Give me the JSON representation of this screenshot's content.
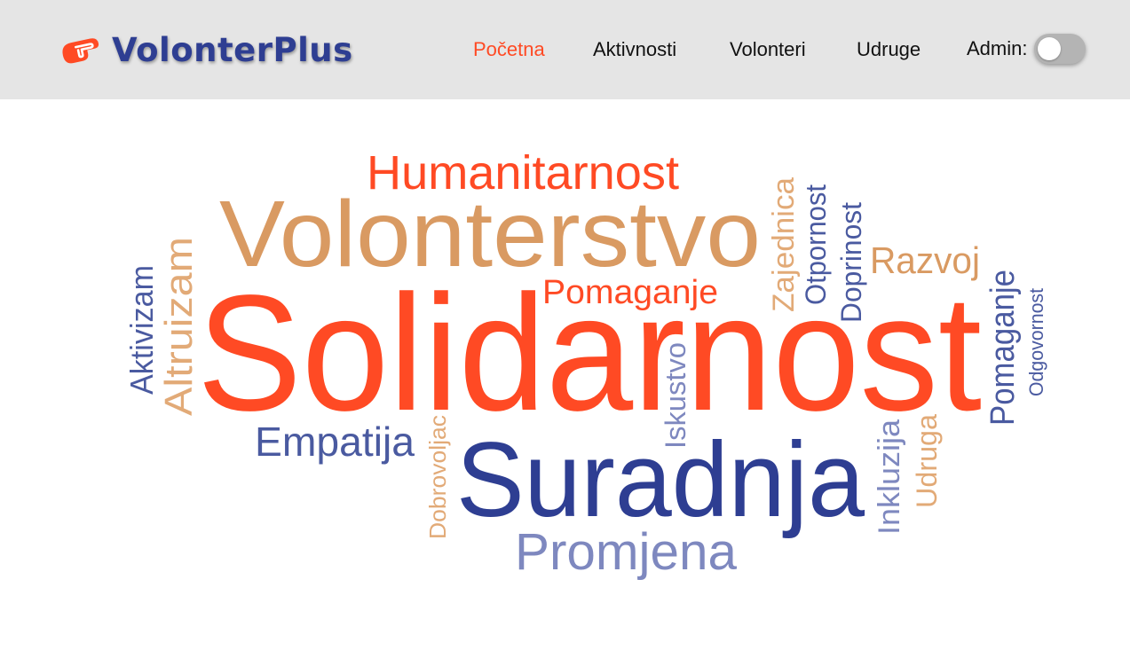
{
  "app": {
    "brand": "VolonterPlus"
  },
  "nav": {
    "items": [
      {
        "label": "Početna",
        "active": true
      },
      {
        "label": "Aktivnosti",
        "active": false
      },
      {
        "label": "Volonteri",
        "active": false
      },
      {
        "label": "Udruge",
        "active": false
      }
    ],
    "admin_label": "Admin:",
    "admin_toggle_on": false
  },
  "colors": {
    "accent_orange": "#ff4a24",
    "tan": "#d99a62",
    "navy": "#2e3e92",
    "slate_blue": "#4a5aa0",
    "lavender": "#7e88bf",
    "light_tan": "#e2aa77",
    "header_bg": "#e5e5e5"
  },
  "word_cloud": {
    "words": [
      "Solidarnost",
      "Volonterstvo",
      "Suradnja",
      "Humanitarnost",
      "Promjena",
      "Empatija",
      "Pomaganje",
      "Razvoj",
      "Altruizam",
      "Aktivizam",
      "Zajednica",
      "Otpornost",
      "Doprinost",
      "Pomaganje",
      "Odgovornost",
      "Iskustvo",
      "Dobrovoljac",
      "Inkluzija",
      "Udruga"
    ]
  }
}
